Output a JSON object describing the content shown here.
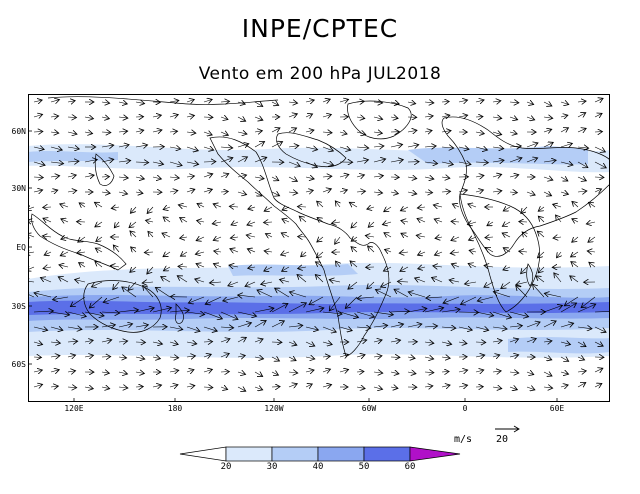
{
  "header": {
    "title": "INPE/CPTEC",
    "subtitle": "Vento em 200 hPa JUL2018"
  },
  "map": {
    "lat_labels": [
      "60N",
      "30N",
      "EQ",
      "30S",
      "60S"
    ],
    "lon_labels": [
      "120E",
      "180",
      "120W",
      "60W",
      "0",
      "60E"
    ]
  },
  "legend": {
    "unit_label": "m/s",
    "reference_vector": "20",
    "ticks": [
      "20",
      "30",
      "40",
      "50",
      "60"
    ],
    "colors": [
      "#ffffff",
      "#dbe9fb",
      "#b4cdf6",
      "#8aa7f0",
      "#5b6fe8",
      "#b010c8"
    ]
  }
}
